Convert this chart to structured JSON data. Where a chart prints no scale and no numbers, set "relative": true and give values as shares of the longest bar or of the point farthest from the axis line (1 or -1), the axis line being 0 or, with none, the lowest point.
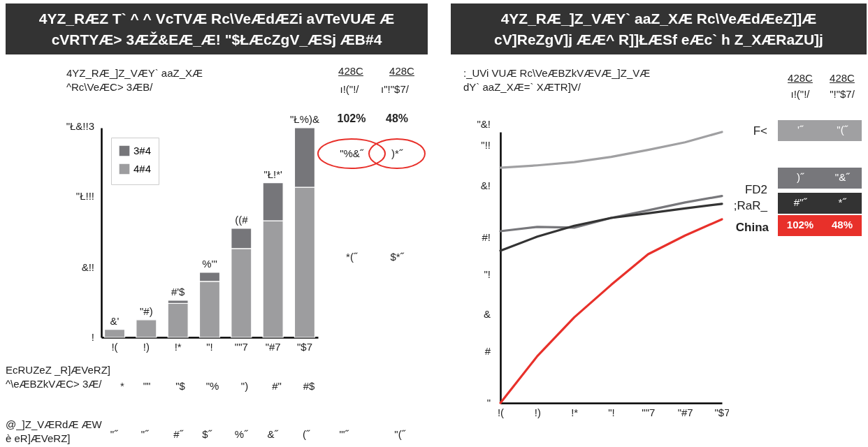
{
  "chart_data": [
    {
      "type": "bar",
      "title": "4YZ_RÆZ T` ^ ^ VcTVÆ Rc\\VeÆdÆZi aVTeVUÆ Æ\ncVRTYÆ> 3ÆŽ&EÆ_Æ! \"$ŁÆcZgV_ÆSj ÆB#4",
      "subtitle": "4YZ_RÆ_]Z_VÆY` aaZ_XÆ\n^Rc\\VeÆC> 3ÆB/",
      "categories": [
        "!(",
        "!)",
        "!*",
        "\"!",
        "\"\"7",
        "\"#7",
        "\"$7"
      ],
      "series": [
        {
          "name": "4#4",
          "color": "#9d9d9f",
          "values": [
            0.038,
            0.084,
            0.162,
            0.267,
            0.424,
            0.556,
            0.716
          ]
        },
        {
          "name": "3#4",
          "color": "#76767a",
          "values": [
            null,
            null,
            0.015,
            0.043,
            0.096,
            0.182,
            0.284
          ]
        }
      ],
      "relative": true,
      "stacked": true,
      "totals": [
        "&'",
        "\"#)",
        "#'$",
        "%'\"",
        "((#",
        "\"Ł!*'",
        "\"Ł%)&"
      ],
      "legend": "top left",
      "annotations": [
        "428C",
        "ı!(\"!/",
        "428C",
        "ı\"!\"$7/",
        "102%",
        "48%",
        "\"%&˝",
        ")*˝",
        "*(˝",
        "$*˝",
        "EcRUZeZ _R]ÆVeRZ]\n^\\eÆBZkVÆC> 3Æ/",
        "*",
        "\"\"",
        "\"$",
        "\"%",
        "\")",
        "#\"",
        "#$",
        "@_]Z_VÆRdÆ ÆW\nè eR]ÆVeRZ]",
        "\"˝",
        "\"˝",
        "#˝",
        "$˝",
        "%˝",
        "&˝",
        "(˝",
        "\"'˝",
        "\"(˝",
        "\"Ł&!!3",
        "\"Ł!!!",
        "&!!",
        "!"
      ]
    },
    {
      "type": "line",
      "title": "4YZ_RÆ_]Z_VÆY` aaZ_XÆ Rc\\VeÆdÆeZ]]Æ\ncV]ReZgV]j ÆÆ^ R]]ŁÆSf eÆc` h Z_XÆRaZU]j",
      "subtitle": ":_UVi VUÆ Rc\\VeÆBZkVÆVÆ_]Z_VÆ\ndY` aaZ_XÆ=` XÆTR]V/",
      "categories": [
        "!(",
        "!)",
        "!*",
        "\"!",
        "\"\"7",
        "\"#7",
        "\"$7"
      ],
      "series": [
        {
          "name": "F<",
          "color": "#a0a0a2",
          "values": [
            0.868,
            0.877,
            0.889,
            0.908,
            0.934,
            0.962,
            1
          ]
        },
        {
          "name": "FD2",
          "color": "#77777b",
          "values": [
            0.634,
            0.65,
            0.647,
            0.683,
            0.711,
            0.74,
            0.764
          ]
        },
        {
          "name": ";RaR_",
          "color": "#333333",
          "values": [
            0.562,
            0.614,
            0.654,
            0.683,
            0.7,
            0.718,
            0.735
          ]
        },
        {
          "name": "China",
          "color": "#e8302a",
          "values": [
            0,
            0.173,
            0.316,
            0.436,
            0.549,
            0.618,
            0.678
          ]
        }
      ],
      "relative": true,
      "line_style": "solid",
      "marker": "none",
      "annotations": [
        "428C",
        "428C",
        "ı!(\"!/",
        "\"!\"$7/",
        "\"&!",
        "\"!!",
        "&!",
        "#!",
        "\"!",
        "&",
        "#",
        "\"",
        "'˝",
        "\"(˝",
        ")˝",
        "\"&˝",
        "#\"˝",
        "*˝",
        "102%",
        "48%"
      ]
    }
  ]
}
